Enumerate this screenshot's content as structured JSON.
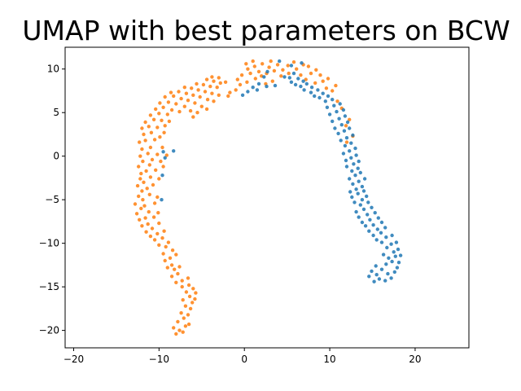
{
  "chart_data": {
    "type": "scatter",
    "title": "UMAP with best parameters on BCW",
    "xlabel": "",
    "ylabel": "",
    "xlim": [
      -21,
      26.3
    ],
    "ylim": [
      -22,
      12.5
    ],
    "xticks": [
      -20,
      -10,
      0,
      10,
      20
    ],
    "yticks": [
      -20,
      -15,
      -10,
      -5,
      0,
      5,
      10
    ],
    "grid": false,
    "legend": "none",
    "series": [
      {
        "color": "#ff7f0e",
        "points": [
          [
            -8,
            -20.4
          ],
          [
            -7.6,
            -20
          ],
          [
            -7.2,
            -20.2
          ],
          [
            -8.3,
            -19.7
          ],
          [
            -6.9,
            -19.5
          ],
          [
            -7.8,
            -19
          ],
          [
            -6.5,
            -19.3
          ],
          [
            -7.1,
            -18.6
          ],
          [
            -6.6,
            -18.2
          ],
          [
            -7.4,
            -18
          ],
          [
            -6.3,
            -17.5
          ],
          [
            -6.9,
            -17.2
          ],
          [
            -6.1,
            -16.8
          ],
          [
            -7.2,
            -16.5
          ],
          [
            -6.4,
            -16.1
          ],
          [
            -5.8,
            -16.4
          ],
          [
            -6.8,
            -15.6
          ],
          [
            -6,
            -15.2
          ],
          [
            -5.7,
            -15.7
          ],
          [
            -7.3,
            -15
          ],
          [
            -6.5,
            -14.8
          ],
          [
            -8,
            -14.5
          ],
          [
            -7.3,
            -14.3
          ],
          [
            -6.6,
            -14
          ],
          [
            -8.5,
            -13.8
          ],
          [
            -7.8,
            -13.5
          ],
          [
            -8.2,
            -13
          ],
          [
            -9,
            -12.8
          ],
          [
            -8.5,
            -12.5
          ],
          [
            -7.6,
            -12.7
          ],
          [
            -9.3,
            -12
          ],
          [
            -8.7,
            -11.7
          ],
          [
            -8,
            -11.3
          ],
          [
            -9.5,
            -11.2
          ],
          [
            -8.4,
            -10.8
          ],
          [
            -9.2,
            -10.4
          ],
          [
            -10,
            -10.2
          ],
          [
            -8.9,
            -9.9
          ],
          [
            -10.5,
            -9.6
          ],
          [
            -9.6,
            -9.4
          ],
          [
            -11,
            -9.2
          ],
          [
            -10.2,
            -8.9
          ],
          [
            -11.5,
            -8.7
          ],
          [
            -9.4,
            -8.6
          ],
          [
            -10.8,
            -8.3
          ],
          [
            -12,
            -8
          ],
          [
            -11.3,
            -7.8
          ],
          [
            -10,
            -7.7
          ],
          [
            -12.3,
            -7.3
          ],
          [
            -11.6,
            -7.1
          ],
          [
            -10.6,
            -7
          ],
          [
            -12.6,
            -6.6
          ],
          [
            -11.2,
            -6.4
          ],
          [
            -10.1,
            -6.5
          ],
          [
            -12.1,
            -6
          ],
          [
            -11.7,
            -5.7
          ],
          [
            -12.8,
            -5.5
          ],
          [
            -10.5,
            -5.4
          ],
          [
            -11.9,
            -5
          ],
          [
            -12.4,
            -4.6
          ],
          [
            -11.1,
            -4.4
          ],
          [
            -10.2,
            -4.7
          ],
          [
            -12,
            -4
          ],
          [
            -11.4,
            -3.7
          ],
          [
            -12.5,
            -3.4
          ],
          [
            -10.7,
            -3.3
          ],
          [
            -11.8,
            -3
          ],
          [
            -12.2,
            -2.6
          ],
          [
            -11,
            -2.4
          ],
          [
            -10,
            -2.6
          ],
          [
            -12.1,
            -2
          ],
          [
            -11.5,
            -1.7
          ],
          [
            -10.4,
            -1.6
          ],
          [
            -12.4,
            -1.2
          ],
          [
            -11.1,
            -1
          ],
          [
            -9.5,
            -1.2
          ],
          [
            -11.9,
            -0.6
          ],
          [
            -10.8,
            -0.4
          ],
          [
            -9.8,
            -0.6
          ],
          [
            -12.2,
            0
          ],
          [
            -11.3,
            0.3
          ],
          [
            -10.2,
            0.2
          ],
          [
            -9.1,
            0.1
          ],
          [
            -12,
            0.8
          ],
          [
            -11,
            1
          ],
          [
            -9.6,
            1
          ],
          [
            -12.3,
            1.6
          ],
          [
            -11.6,
            1.8
          ],
          [
            -10.5,
            1.9
          ],
          [
            -9.9,
            2.2
          ],
          [
            -11.8,
            2.5
          ],
          [
            -10.9,
            2.7
          ],
          [
            -9.4,
            2.7
          ],
          [
            -12,
            3.2
          ],
          [
            -11.2,
            3.4
          ],
          [
            -10.2,
            3.3
          ],
          [
            -9.3,
            3.5
          ],
          [
            -11.6,
            3.9
          ],
          [
            -10.6,
            4.2
          ],
          [
            -9.7,
            4.1
          ],
          [
            -8.8,
            4
          ],
          [
            -11,
            4.7
          ],
          [
            -10,
            4.9
          ],
          [
            -9,
            4.8
          ],
          [
            -10.4,
            5.4
          ],
          [
            -9.5,
            5.6
          ],
          [
            -8.5,
            5.3
          ],
          [
            -7.6,
            5.1
          ],
          [
            -9.9,
            6.1
          ],
          [
            -8.9,
            6.2
          ],
          [
            -8,
            6
          ],
          [
            -7,
            5.7
          ],
          [
            -6.3,
            5.2
          ],
          [
            -6,
            4.5
          ],
          [
            -5.5,
            5
          ],
          [
            -9.3,
            6.8
          ],
          [
            -8.3,
            6.9
          ],
          [
            -7.4,
            6.6
          ],
          [
            -6.6,
            6.4
          ],
          [
            -5.8,
            6.1
          ],
          [
            -5,
            5.7
          ],
          [
            -4.4,
            5.4
          ],
          [
            -8.6,
            7.3
          ],
          [
            -7.7,
            7.4
          ],
          [
            -6.8,
            7.2
          ],
          [
            -6,
            7
          ],
          [
            -5.2,
            6.8
          ],
          [
            -4.3,
            6.5
          ],
          [
            -3.6,
            6.3
          ],
          [
            -7,
            7.9
          ],
          [
            -6.2,
            7.8
          ],
          [
            -5.4,
            7.6
          ],
          [
            -4.6,
            7.4
          ],
          [
            -3.8,
            7.2
          ],
          [
            -3,
            7
          ],
          [
            -5.6,
            8.3
          ],
          [
            -4.8,
            8.2
          ],
          [
            -4,
            8
          ],
          [
            -3.2,
            7.9
          ],
          [
            -4.4,
            8.8
          ],
          [
            -3.6,
            8.6
          ],
          [
            -2.8,
            8.4
          ],
          [
            -3.8,
            9.1
          ],
          [
            -3,
            9
          ],
          [
            -2.2,
            8.5
          ],
          [
            -1.7,
            7.3
          ],
          [
            -1.9,
            6.9
          ],
          [
            -1,
            7.6
          ],
          [
            -0.5,
            8.2
          ],
          [
            0.3,
            8.5
          ],
          [
            -0.8,
            8.8
          ],
          [
            -0.3,
            9.3
          ],
          [
            0.7,
            9.5
          ],
          [
            1.3,
            8.9
          ],
          [
            2,
            9.2
          ],
          [
            0.4,
            10
          ],
          [
            1.2,
            10.3
          ],
          [
            2.1,
            10.6
          ],
          [
            2.9,
            10.2
          ],
          [
            1.7,
            9.7
          ],
          [
            2.6,
            9.5
          ],
          [
            3.5,
            9.8
          ],
          [
            0.2,
            10.6
          ],
          [
            1,
            10.9
          ],
          [
            3.1,
            10.9
          ],
          [
            3.9,
            10.5
          ],
          [
            4.5,
            9.9
          ],
          [
            5.1,
            10.4
          ],
          [
            4.3,
            9.2
          ],
          [
            5.2,
            9.5
          ],
          [
            6.1,
            10
          ],
          [
            6.6,
            9.3
          ],
          [
            5.8,
            10.8
          ],
          [
            6.9,
            10.5
          ],
          [
            7.5,
            10.3
          ],
          [
            7.8,
            9.5
          ],
          [
            8.4,
            9.9
          ],
          [
            8.9,
            9.3
          ],
          [
            9.2,
            8.6
          ],
          [
            9.8,
            8.9
          ],
          [
            9.6,
            7.8
          ],
          [
            10.3,
            7.5
          ],
          [
            10.7,
            8.1
          ],
          [
            8.3,
            8.4
          ],
          [
            7.2,
            8.8
          ],
          [
            3.3,
            8.6
          ],
          [
            2.5,
            8.3
          ],
          [
            10.9,
            6.3
          ],
          [
            11.4,
            5.5
          ],
          [
            12.3,
            4.2
          ],
          [
            11.9,
            3.5
          ],
          [
            12.7,
            2.3
          ],
          [
            12,
            1.6
          ]
        ]
      },
      {
        "color": "#1f77b4",
        "points": [
          [
            15.2,
            -14.4
          ],
          [
            15.8,
            -14.1
          ],
          [
            16.5,
            -14.3
          ],
          [
            17.2,
            -14
          ],
          [
            14.6,
            -13.8
          ],
          [
            15.5,
            -13.6
          ],
          [
            16.8,
            -13.5
          ],
          [
            17.6,
            -13.3
          ],
          [
            14.9,
            -13.2
          ],
          [
            16.1,
            -13
          ],
          [
            17.9,
            -12.8
          ],
          [
            15.4,
            -12.6
          ],
          [
            16.6,
            -12.4
          ],
          [
            17.3,
            -12.1
          ],
          [
            18.1,
            -12.2
          ],
          [
            16.9,
            -11.7
          ],
          [
            17.7,
            -11.5
          ],
          [
            18.3,
            -11.4
          ],
          [
            16.3,
            -11.3
          ],
          [
            17.5,
            -11
          ],
          [
            18,
            -10.7
          ],
          [
            16.7,
            -10.5
          ],
          [
            17.2,
            -10.1
          ],
          [
            17.8,
            -9.9
          ],
          [
            16.1,
            -9.9
          ],
          [
            15.5,
            -9.6
          ],
          [
            16.6,
            -9.3
          ],
          [
            17.3,
            -9.1
          ],
          [
            15.1,
            -9.1
          ],
          [
            16,
            -8.8
          ],
          [
            14.6,
            -8.6
          ],
          [
            15.6,
            -8.4
          ],
          [
            16.5,
            -8.2
          ],
          [
            14.2,
            -8
          ],
          [
            15.1,
            -7.9
          ],
          [
            16.1,
            -7.6
          ],
          [
            13.8,
            -7.6
          ],
          [
            14.7,
            -7.3
          ],
          [
            15.7,
            -7.1
          ],
          [
            13.4,
            -7
          ],
          [
            14.4,
            -6.7
          ],
          [
            15.3,
            -6.5
          ],
          [
            13.1,
            -6.4
          ],
          [
            14,
            -6.1
          ],
          [
            14.9,
            -5.9
          ],
          [
            13.6,
            -5.6
          ],
          [
            14.5,
            -5.3
          ],
          [
            12.9,
            -5.3
          ],
          [
            13.8,
            -5
          ],
          [
            14.3,
            -4.6
          ],
          [
            12.6,
            -4.7
          ],
          [
            13.3,
            -4.3
          ],
          [
            14,
            -4
          ],
          [
            12.4,
            -4.1
          ],
          [
            13.1,
            -3.8
          ],
          [
            13.8,
            -3.5
          ],
          [
            12.7,
            -3.2
          ],
          [
            13.4,
            -2.9
          ],
          [
            14.1,
            -2.6
          ],
          [
            12.3,
            -2.6
          ],
          [
            13,
            -2.2
          ],
          [
            13.6,
            -1.9
          ],
          [
            12.6,
            -1.7
          ],
          [
            13.3,
            -1.4
          ],
          [
            12,
            -1.2
          ],
          [
            12.8,
            -0.9
          ],
          [
            13.4,
            -0.6
          ],
          [
            11.9,
            -0.5
          ],
          [
            12.5,
            -0.2
          ],
          [
            13.1,
            0.1
          ],
          [
            11.6,
            0.3
          ],
          [
            12.3,
            0.6
          ],
          [
            13,
            0.9
          ],
          [
            11.8,
            1.2
          ],
          [
            12.5,
            1.5
          ],
          [
            11.3,
            1.8
          ],
          [
            12,
            2.1
          ],
          [
            12.7,
            2.4
          ],
          [
            11,
            2.6
          ],
          [
            11.7,
            2.9
          ],
          [
            12.3,
            3.2
          ],
          [
            10.6,
            3.2
          ],
          [
            11.4,
            3.6
          ],
          [
            12.1,
            3.9
          ],
          [
            10.3,
            4
          ],
          [
            11.1,
            4.3
          ],
          [
            11.8,
            4.6
          ],
          [
            10,
            4.8
          ],
          [
            10.8,
            5.1
          ],
          [
            11.6,
            5.3
          ],
          [
            9.7,
            5.6
          ],
          [
            10.5,
            5.8
          ],
          [
            11.2,
            6
          ],
          [
            9.5,
            6.3
          ],
          [
            10.3,
            6.5
          ],
          [
            8.8,
            6.7
          ],
          [
            9.8,
            6.9
          ],
          [
            8.2,
            6.9
          ],
          [
            9.2,
            7.2
          ],
          [
            7.8,
            7.3
          ],
          [
            8.6,
            7.6
          ],
          [
            7,
            7.6
          ],
          [
            7.9,
            7.9
          ],
          [
            6.6,
            8
          ],
          [
            7.3,
            8.3
          ],
          [
            6,
            8.2
          ],
          [
            6.9,
            8.6
          ],
          [
            5.5,
            8.5
          ],
          [
            6.3,
            8.9
          ],
          [
            5.3,
            9
          ],
          [
            4.7,
            9.1
          ],
          [
            5.8,
            9.5
          ],
          [
            6.7,
            10.7
          ],
          [
            5.5,
            10.4
          ],
          [
            4.1,
            10.9
          ],
          [
            2.7,
            9.7
          ],
          [
            2.3,
            9.1
          ],
          [
            1.7,
            8.3
          ],
          [
            1,
            7.9
          ],
          [
            0.4,
            7.4
          ],
          [
            -0.2,
            7
          ],
          [
            1.5,
            7.6
          ],
          [
            2.6,
            8
          ],
          [
            3.6,
            8.1
          ],
          [
            -8.3,
            0.6
          ],
          [
            -9.5,
            0.5
          ],
          [
            -9.3,
            -0.2
          ],
          [
            -9.6,
            -2.2
          ],
          [
            -9.7,
            -5
          ]
        ]
      }
    ]
  }
}
